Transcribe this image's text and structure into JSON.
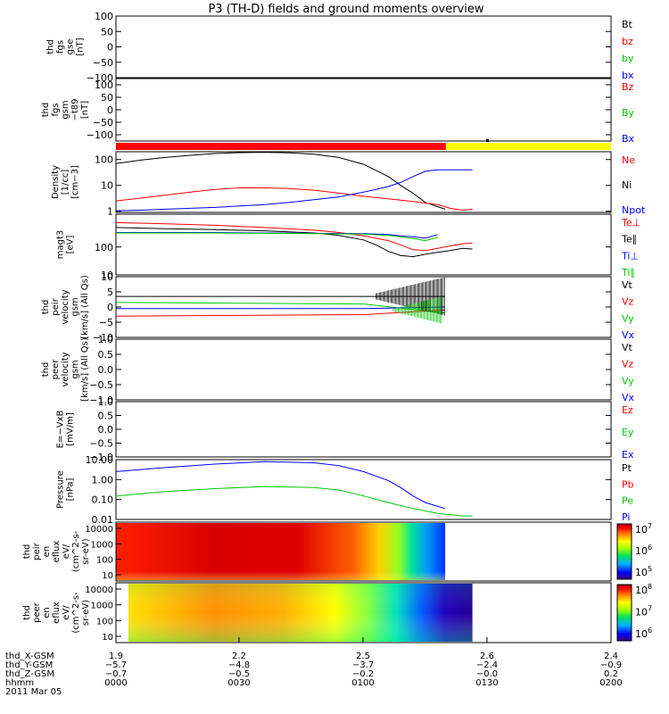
{
  "title": "P3 (TH-D) fields and ground moments overview",
  "colors": {
    "black": "#000000",
    "red": "#ff0000",
    "green": "#00c800",
    "blue": "#0000ff",
    "yellow": "#ffff00"
  },
  "chart_data": [
    {
      "type": "line",
      "panel": "fgs-gse",
      "ylabel": [
        "thd",
        "fgs",
        "gse",
        "[nT]"
      ],
      "ylim": [
        -100,
        100
      ],
      "yticks": [
        "100",
        "50",
        "0",
        "−50",
        "−100"
      ],
      "legend": [
        {
          "text": "Bt",
          "color": "#000000"
        },
        {
          "text": "bz",
          "color": "#ff0000"
        },
        {
          "text": "by",
          "color": "#00c800"
        },
        {
          "text": "bx",
          "color": "#0000ff"
        }
      ],
      "series": []
    },
    {
      "type": "line",
      "panel": "fgs-gsm-t89",
      "ylabel": [
        "thd",
        "fgs",
        "gsm",
        "−t89",
        "[nT]"
      ],
      "ylim": [
        -125,
        125
      ],
      "yticks": [
        "100",
        "50",
        "0",
        "−50",
        "−100"
      ],
      "ytick_values": [
        100,
        50,
        0,
        -50,
        -100
      ],
      "legend": [
        {
          "text": "Bz",
          "color": "#ff0000"
        },
        {
          "text": "By",
          "color": "#00c800"
        },
        {
          "text": "Bx",
          "color": "#0000ff"
        }
      ],
      "series": []
    },
    {
      "type": "bar",
      "panel": "mode-bar",
      "segments": [
        {
          "start": 0.0,
          "end": 1.333,
          "color": "#ff0000"
        },
        {
          "start": 1.333,
          "end": 2.0,
          "color": "#ffff00"
        }
      ]
    },
    {
      "type": "line",
      "panel": "density",
      "scale": "log",
      "ylabel": [
        "Density",
        "[1/cc]",
        "[cm−3]"
      ],
      "ylim": [
        0.9,
        200
      ],
      "yticks": [
        "100",
        "10",
        "1"
      ],
      "ytick_values": [
        100,
        10,
        1
      ],
      "legend": [
        {
          "text": "Ne",
          "color": "#ff0000"
        },
        {
          "text": "Ni",
          "color": "#000000"
        },
        {
          "text": "Npot",
          "color": "#0000ff"
        }
      ],
      "series": [
        {
          "name": "Ni",
          "color": "#000000",
          "x": [
            0.0,
            0.1,
            0.2,
            0.3,
            0.4,
            0.5,
            0.6,
            0.7,
            0.8,
            0.9,
            1.0,
            1.1,
            1.15,
            1.2,
            1.25,
            1.3,
            1.33
          ],
          "y": [
            70,
            95,
            120,
            145,
            170,
            185,
            190,
            180,
            160,
            120,
            65,
            22,
            10,
            5,
            2.2,
            1.5,
            1.2
          ]
        },
        {
          "name": "Ne",
          "color": "#ff0000",
          "x": [
            0.0,
            0.1,
            0.2,
            0.3,
            0.4,
            0.5,
            0.6,
            0.7,
            0.8,
            0.9,
            1.0,
            1.1,
            1.2,
            1.3,
            1.35,
            1.4,
            1.44
          ],
          "y": [
            2.5,
            3.2,
            4.2,
            5.5,
            7,
            8,
            8,
            7.5,
            6.5,
            5,
            3.8,
            3,
            2.4,
            1.8,
            1.3,
            1.1,
            1.2
          ]
        },
        {
          "name": "Npot",
          "color": "#0000ff",
          "x": [
            0.0,
            0.1,
            0.2,
            0.3,
            0.4,
            0.5,
            0.6,
            0.7,
            0.8,
            0.9,
            1.0,
            1.05,
            1.1,
            1.15,
            1.2,
            1.25,
            1.3,
            1.44
          ],
          "y": [
            1.05,
            1.1,
            1.2,
            1.3,
            1.4,
            1.6,
            1.8,
            2.2,
            2.8,
            3.6,
            5.5,
            7,
            9,
            13,
            22,
            35,
            40,
            40
          ]
        }
      ]
    },
    {
      "type": "line",
      "panel": "temperature",
      "scale": "log",
      "ylabel": [
        "magt3",
        "[eV]"
      ],
      "ylim": [
        10,
        1500
      ],
      "yticks": [
        "100",
        "10"
      ],
      "ytick_values": [
        100,
        10
      ],
      "legend": [
        {
          "text": "Te⊥",
          "color": "#ff0000"
        },
        {
          "text": "Te∥",
          "color": "#000000"
        },
        {
          "text": "Ti⊥",
          "color": "#0000ff"
        },
        {
          "text": "Ti∥",
          "color": "#00c800"
        }
      ],
      "series": [
        {
          "name": "Te⊥",
          "color": "#ff0000",
          "x": [
            0.0,
            0.2,
            0.4,
            0.6,
            0.8,
            0.9,
            1.0,
            1.1,
            1.15,
            1.2,
            1.25,
            1.3,
            1.35,
            1.4,
            1.44
          ],
          "y": [
            750,
            680,
            600,
            500,
            400,
            330,
            250,
            170,
            120,
            80,
            75,
            90,
            110,
            130,
            140
          ]
        },
        {
          "name": "Te∥",
          "color": "#000000",
          "x": [
            0.0,
            0.2,
            0.4,
            0.6,
            0.8,
            0.9,
            1.0,
            1.05,
            1.1,
            1.15,
            1.2,
            1.25,
            1.3,
            1.35,
            1.4,
            1.44
          ],
          "y": [
            500,
            450,
            420,
            380,
            320,
            260,
            180,
            120,
            70,
            50,
            45,
            55,
            65,
            75,
            90,
            85
          ]
        },
        {
          "name": "Ti⊥",
          "color": "#0000ff",
          "x": [
            0.0,
            0.2,
            0.4,
            0.6,
            0.8,
            1.0,
            1.1,
            1.15,
            1.2,
            1.25,
            1.3
          ],
          "y": [
            330,
            330,
            330,
            320,
            310,
            300,
            280,
            250,
            230,
            210,
            280
          ]
        },
        {
          "name": "Ti∥",
          "color": "#00c800",
          "x": [
            0.0,
            0.2,
            0.4,
            0.6,
            0.8,
            1.0,
            1.1,
            1.15,
            1.2,
            1.25,
            1.3
          ],
          "y": [
            320,
            320,
            320,
            310,
            300,
            290,
            260,
            230,
            200,
            170,
            220
          ]
        }
      ]
    },
    {
      "type": "line",
      "panel": "peir-velocity",
      "ylabel": [
        "thd",
        "peir",
        "velocity",
        "gsm",
        "[km/s] (All Qs)"
      ],
      "ylim": [
        -10,
        10
      ],
      "yticks": [
        "10",
        "5",
        "0",
        "−5",
        "−10"
      ],
      "ytick_values": [
        10,
        5,
        0,
        -5,
        -10
      ],
      "legend": [
        {
          "text": "Vt",
          "color": "#000000"
        },
        {
          "text": "Vz",
          "color": "#ff0000"
        },
        {
          "text": "Vy",
          "color": "#00c800"
        },
        {
          "text": "Vx",
          "color": "#0000ff"
        }
      ],
      "series": [
        {
          "name": "Vt",
          "color": "#000000",
          "x": [
            0.0,
            1.0,
            1.33
          ],
          "y": [
            3.5,
            3.5,
            3.5
          ]
        },
        {
          "name": "Vy",
          "color": "#00c800",
          "x": [
            0.0,
            1.0,
            1.33
          ],
          "y": [
            1.5,
            1.0,
            -2
          ]
        },
        {
          "name": "Vx",
          "color": "#0000ff",
          "x": [
            0.0,
            1.0,
            1.33
          ],
          "y": [
            -0.5,
            -0.5,
            0
          ]
        },
        {
          "name": "Vz",
          "color": "#ff0000",
          "x": [
            0.0,
            1.0,
            1.33
          ],
          "y": [
            -3,
            -2.5,
            -1
          ]
        }
      ]
    },
    {
      "type": "line",
      "panel": "peer-velocity",
      "ylabel": [
        "thd",
        "peer",
        "velocity",
        "gsm",
        "[km/s] (All Qs)"
      ],
      "ylim": [
        -1,
        1
      ],
      "yticks": [
        "1.0",
        "0.5",
        "0.0",
        "−0.5",
        "−1.0"
      ],
      "legend": [
        {
          "text": "Vt",
          "color": "#000000"
        },
        {
          "text": "Vz",
          "color": "#ff0000"
        },
        {
          "text": "Vy",
          "color": "#00c800"
        },
        {
          "text": "Vx",
          "color": "#0000ff"
        }
      ],
      "series": []
    },
    {
      "type": "line",
      "panel": "efield",
      "ylabel": [
        "E=−VxB",
        "[mV/m]"
      ],
      "ylim": [
        -1,
        1
      ],
      "yticks": [
        "1.0",
        "0.5",
        "0.0",
        "−0.5",
        "−1.0"
      ],
      "legend": [
        {
          "text": "Ez",
          "color": "#ff0000"
        },
        {
          "text": "Ey",
          "color": "#00c800"
        },
        {
          "text": "Ex",
          "color": "#0000ff"
        }
      ],
      "series": []
    },
    {
      "type": "line",
      "panel": "pressure",
      "scale": "log",
      "ylabel": [
        "Pressure",
        "[nPa]"
      ],
      "ylim": [
        0.01,
        10
      ],
      "yticks": [
        "10.00",
        "1.00",
        "0.10",
        "0.01"
      ],
      "ytick_values": [
        10,
        1,
        0.1,
        0.01
      ],
      "legend": [
        {
          "text": "Pt",
          "color": "#000000"
        },
        {
          "text": "Pb",
          "color": "#ff0000"
        },
        {
          "text": "Pe",
          "color": "#00c800"
        },
        {
          "text": "Pi",
          "color": "#0000ff"
        }
      ],
      "series": [
        {
          "name": "Pi",
          "color": "#0000ff",
          "x": [
            0.0,
            0.2,
            0.4,
            0.6,
            0.8,
            0.9,
            1.0,
            1.1,
            1.15,
            1.2,
            1.25,
            1.3,
            1.33
          ],
          "y": [
            2.5,
            4,
            6,
            8,
            7,
            5,
            2.5,
            0.9,
            0.4,
            0.15,
            0.07,
            0.045,
            0.035
          ]
        },
        {
          "name": "Pe",
          "color": "#00c800",
          "x": [
            0.0,
            0.2,
            0.4,
            0.6,
            0.8,
            0.9,
            1.0,
            1.1,
            1.2,
            1.3,
            1.4,
            1.44
          ],
          "y": [
            0.15,
            0.25,
            0.35,
            0.45,
            0.4,
            0.3,
            0.15,
            0.07,
            0.035,
            0.02,
            0.015,
            0.015
          ]
        }
      ]
    },
    {
      "type": "heatmap",
      "panel": "peir-spectrogram",
      "ylabel": [
        "thd",
        "peir",
        "en",
        "eflux",
        "eV/",
        "(cm^2-s-",
        "sr-eV)"
      ],
      "yticks": [
        "10000",
        "1000",
        "100",
        "10"
      ],
      "colorbar": [
        "10^7",
        "10^6",
        "10^5"
      ],
      "data_extent": [
        0.0,
        1.33
      ]
    },
    {
      "type": "heatmap",
      "panel": "peer-spectrogram",
      "ylabel": [
        "thd",
        "peer",
        "en",
        "eflux",
        "eV/",
        "(cm^2-s-",
        "sr-eV)"
      ],
      "yticks": [
        "10000",
        "1000",
        "100",
        "10"
      ],
      "colorbar": [
        "10^8",
        "10^7",
        "10^6"
      ],
      "data_extent": [
        0.05,
        1.44
      ]
    }
  ],
  "xaxis": {
    "rows": [
      {
        "label": "thd_X-GSM",
        "values": [
          "1.9",
          "2.2",
          "2.5",
          "2.6",
          "2.4"
        ]
      },
      {
        "label": "thd_Y-GSM",
        "values": [
          "−5.7",
          "−4.8",
          "−3.7",
          "−2.4",
          "−0.9"
        ]
      },
      {
        "label": "thd_Z-GSM",
        "values": [
          "−0.7",
          "−0.5",
          "−0.2",
          "−0.0",
          "0.2"
        ]
      },
      {
        "label": "hhmm",
        "values": [
          "0000",
          "0030",
          "0100",
          "0130",
          "0200"
        ]
      }
    ],
    "date": "2011 Mar 05"
  }
}
